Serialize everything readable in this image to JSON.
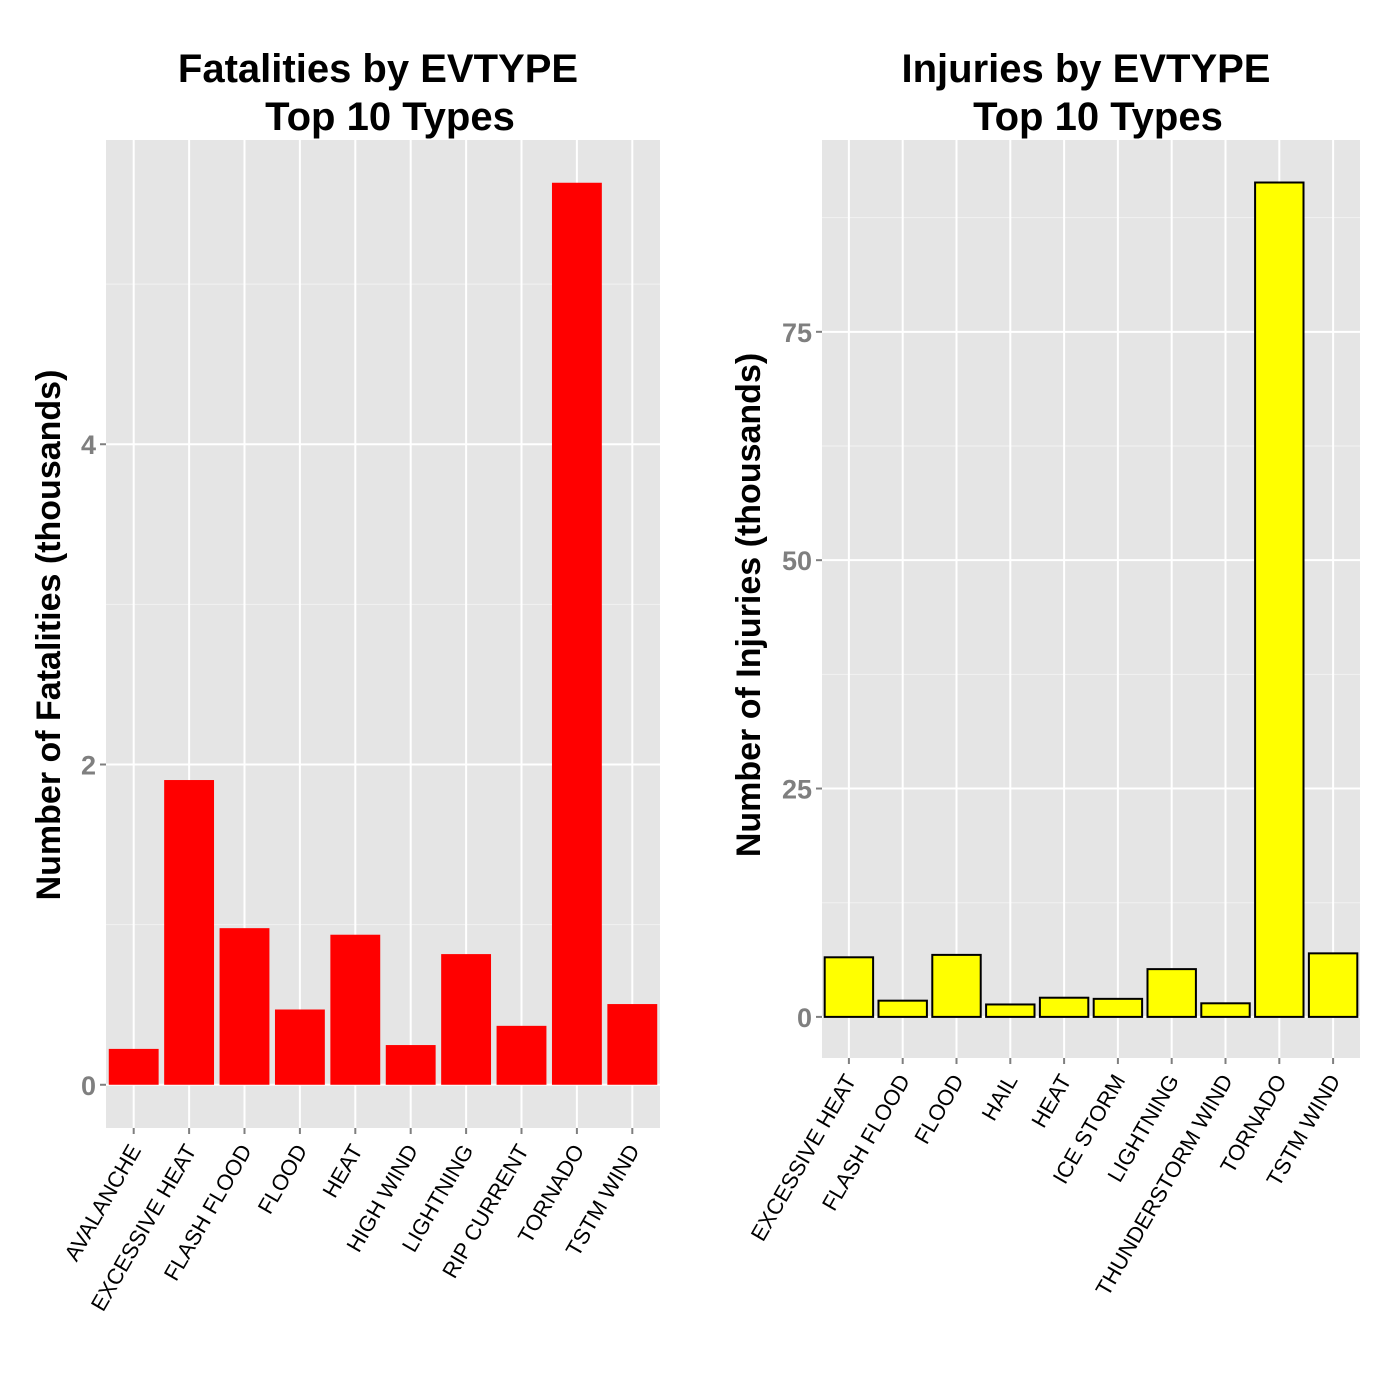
{
  "chart_data": [
    {
      "type": "bar",
      "title": "Fatalities by EVTYPE",
      "subtitle": "Top 10 Types",
      "xlabel": "",
      "ylabel": "Number of Fatalities (thousands)",
      "categories": [
        "AVALANCHE",
        "EXCESSIVE HEAT",
        "FLASH FLOOD",
        "FLOOD",
        "HEAT",
        "HIGH WIND",
        "LIGHTNING",
        "RIP CURRENT",
        "TORNADO",
        "TSTM WIND"
      ],
      "values": [
        0.224,
        1.903,
        0.978,
        0.47,
        0.937,
        0.248,
        0.816,
        0.368,
        5.633,
        0.504
      ],
      "yticks": [
        0,
        2,
        4
      ],
      "ylim": [
        -0.27,
        5.9
      ],
      "bar_fill": "#ff0000",
      "bar_stroke": "none",
      "grid": true,
      "panel_background": "#e5e5e5"
    },
    {
      "type": "bar",
      "title": "Injuries by EVTYPE",
      "subtitle": "Top 10 Types",
      "xlabel": "",
      "ylabel": "Number of Injuries (thousands)",
      "categories": [
        "EXCESSIVE HEAT",
        "FLASH FLOOD",
        "FLOOD",
        "HAIL",
        "HEAT",
        "ICE STORM",
        "LIGHTNING",
        "THUNDERSTORM WIND",
        "TORNADO",
        "TSTM WIND"
      ],
      "values": [
        6.525,
        1.777,
        6.789,
        1.361,
        2.1,
        1.975,
        5.23,
        1.488,
        91.346,
        6.957
      ],
      "yticks": [
        0,
        25,
        50,
        75
      ],
      "ylim": [
        -4.5,
        96
      ],
      "bar_fill": "#ffff00",
      "bar_stroke": "#000000",
      "grid": true,
      "panel_background": "#e5e5e5"
    }
  ]
}
